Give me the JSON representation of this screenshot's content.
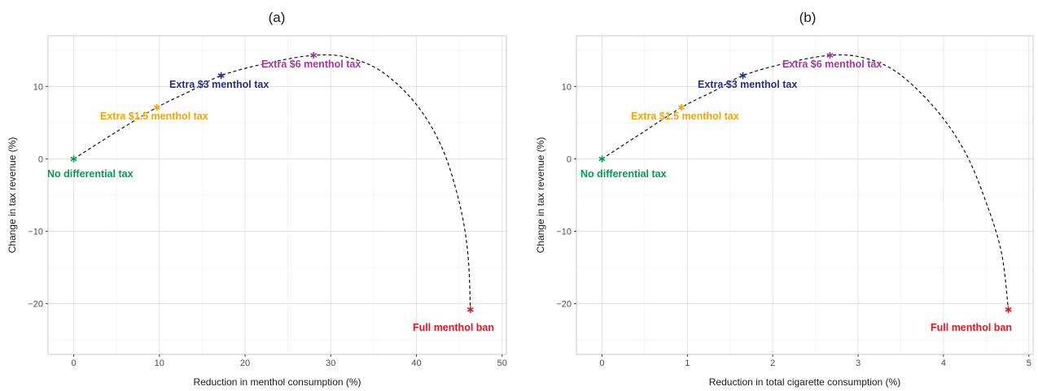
{
  "chart_data": [
    {
      "type": "line",
      "title": "(a)",
      "xlabel": "Reduction in menthol consumption (%)",
      "ylabel": "Change in tax revenue (%)",
      "xlim": [
        -3,
        50.5
      ],
      "ylim": [
        -27,
        17
      ],
      "xticks": [
        0,
        10,
        20,
        30,
        40,
        50
      ],
      "xtick_labels": [
        "0",
        "10",
        "20",
        "30",
        "40",
        "50"
      ],
      "yticks": [
        -20,
        -10,
        0,
        10
      ],
      "ytick_labels": [
        "−20",
        "−10",
        "0",
        "10"
      ],
      "grid": true,
      "curve": [
        [
          0,
          0
        ],
        [
          4.8,
          3.6
        ],
        [
          9.7,
          7.1
        ],
        [
          13.5,
          9.3
        ],
        [
          17.2,
          11.5
        ],
        [
          22.5,
          13.2
        ],
        [
          28.0,
          14.3
        ],
        [
          32.0,
          14.0
        ],
        [
          36.0,
          12.0
        ],
        [
          40.0,
          7.5
        ],
        [
          43.0,
          1.5
        ],
        [
          45.0,
          -6.0
        ],
        [
          46.0,
          -13.0
        ],
        [
          46.3,
          -20.8
        ]
      ],
      "points": [
        {
          "label": "No differential tax",
          "x": 0,
          "y": 0,
          "color": "#009E50"
        },
        {
          "label": "Extra $1.5 menthol tax",
          "x": 9.7,
          "y": 7.1,
          "color": "#F5A300"
        },
        {
          "label": "Extra $3 menthol tax",
          "x": 17.2,
          "y": 11.5,
          "color": "#1F2F8E"
        },
        {
          "label": "Extra $6 menthol tax",
          "x": 28.0,
          "y": 14.3,
          "color": "#A3399B"
        },
        {
          "label": "Full menthol ban",
          "x": 46.3,
          "y": -20.8,
          "color": "#E8141E"
        }
      ]
    },
    {
      "type": "line",
      "title": "(b)",
      "xlabel": "Reduction in total cigarette consumption (%)",
      "ylabel": "Change in tax revenue (%)",
      "xlim": [
        -0.3,
        5.05
      ],
      "ylim": [
        -27,
        17
      ],
      "xticks": [
        0,
        1,
        2,
        3,
        4,
        5
      ],
      "xtick_labels": [
        "0",
        "1",
        "2",
        "3",
        "4",
        "5"
      ],
      "yticks": [
        -20,
        -10,
        0,
        10
      ],
      "ytick_labels": [
        "−20",
        "−10",
        "0",
        "10"
      ],
      "grid": true,
      "curve": [
        [
          0,
          0
        ],
        [
          0.47,
          3.6
        ],
        [
          0.93,
          7.1
        ],
        [
          1.3,
          9.3
        ],
        [
          1.65,
          11.5
        ],
        [
          2.15,
          13.2
        ],
        [
          2.67,
          14.3
        ],
        [
          3.05,
          14.0
        ],
        [
          3.45,
          12.0
        ],
        [
          3.9,
          7.0
        ],
        [
          4.25,
          1.0
        ],
        [
          4.5,
          -6.0
        ],
        [
          4.68,
          -13.0
        ],
        [
          4.76,
          -20.8
        ]
      ],
      "points": [
        {
          "label": "No differential tax",
          "x": 0,
          "y": 0,
          "color": "#009E50"
        },
        {
          "label": "Extra $1.5 menthol tax",
          "x": 0.93,
          "y": 7.1,
          "color": "#F5A300"
        },
        {
          "label": "Extra $3 menthol tax",
          "x": 1.65,
          "y": 11.5,
          "color": "#1F2F8E"
        },
        {
          "label": "Extra $6 menthol tax",
          "x": 2.67,
          "y": 14.3,
          "color": "#A3399B"
        },
        {
          "label": "Full menthol ban",
          "x": 4.76,
          "y": -20.8,
          "color": "#E8141E"
        }
      ]
    }
  ]
}
